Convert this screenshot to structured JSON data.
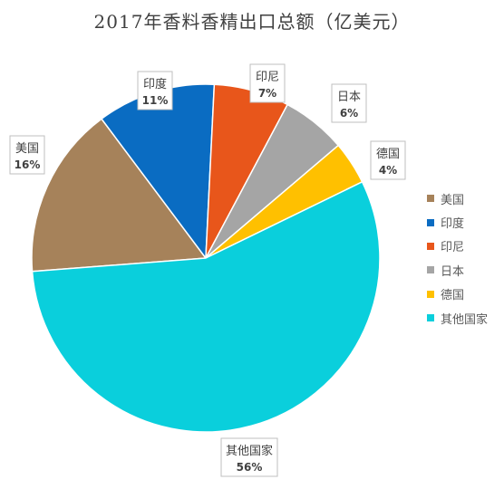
{
  "chart_data": {
    "type": "pie",
    "title": "2017年香料香精出口总额（亿美元）",
    "slices": [
      {
        "label": "美国",
        "pct_label": "16%",
        "value": 16,
        "color": "#A6825A"
      },
      {
        "label": "印度",
        "pct_label": "11%",
        "value": 11,
        "color": "#0A6CC2"
      },
      {
        "label": "印尼",
        "pct_label": "7%",
        "value": 7,
        "color": "#E8561B"
      },
      {
        "label": "日本",
        "pct_label": "6%",
        "value": 6,
        "color": "#A5A5A5"
      },
      {
        "label": "德国",
        "pct_label": "4%",
        "value": 4,
        "color": "#FFC000"
      },
      {
        "label": "其他国家",
        "pct_label": "56%",
        "value": 56,
        "color": "#0ACFDC"
      }
    ],
    "legend_position": "right"
  }
}
